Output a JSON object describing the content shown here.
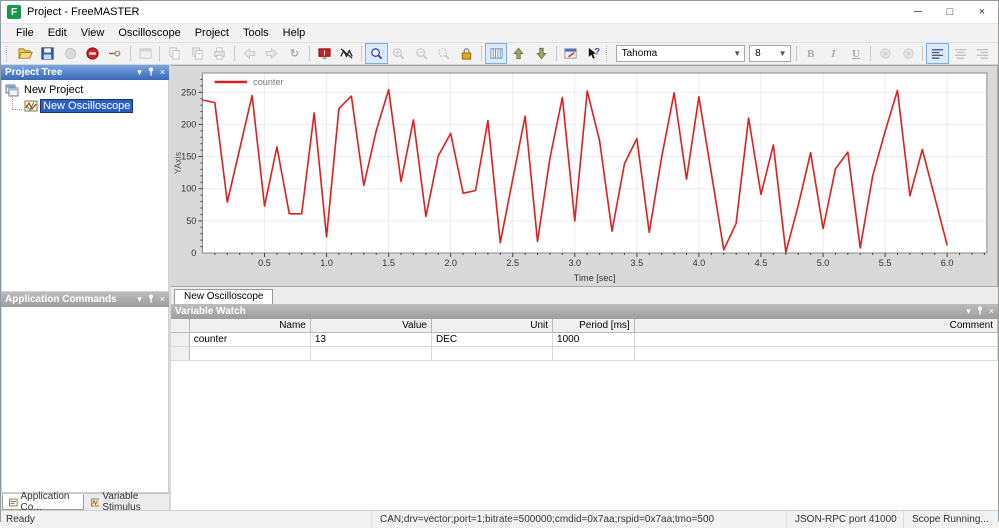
{
  "window": {
    "title": "Project - FreeMASTER",
    "minimize": "─",
    "maximize": "□",
    "close": "×",
    "logo": "F"
  },
  "menu": {
    "items": [
      "File",
      "Edit",
      "View",
      "Oscilloscope",
      "Project",
      "Tools",
      "Help"
    ]
  },
  "toolbar": {
    "font_name": "Tahoma",
    "font_size": "8",
    "bold": "B",
    "italic": "I",
    "underline": "U",
    "reload_glyph": "↻",
    "help_glyph": "?",
    "icons": [
      "open-project-icon",
      "save-project-icon",
      "start-communication-icon",
      "stop-communication-icon",
      "connect-plug-icon",
      "project-options-icon",
      "copy-icon",
      "paste-icon",
      "print-icon",
      "back-icon",
      "forward-icon",
      "reload-icon",
      "communication-error-icon",
      "stimulus-icon",
      "zoom-all-icon",
      "zoom-in-icon",
      "zoom-out-icon",
      "zoom-selection-icon",
      "lock-scope-icon",
      "grid-icon",
      "move-up-icon",
      "move-down-icon",
      "properties-icon",
      "context-help-icon",
      "bold-button",
      "italic-button",
      "underline-button",
      "text-color-icon",
      "highlight-color-icon",
      "align-left-icon",
      "align-center-icon",
      "align-right-icon"
    ]
  },
  "project_tree": {
    "title": "Project Tree",
    "items": [
      {
        "label": "New Project",
        "selected": false
      },
      {
        "label": "New Oscilloscope",
        "selected": true
      }
    ]
  },
  "application_commands": {
    "title": "Application Commands"
  },
  "bottom_tabs": [
    {
      "label": "Application Co...",
      "active": true
    },
    {
      "label": "Variable Stimulus",
      "active": false
    }
  ],
  "scope_tab": {
    "label": "New Oscilloscope"
  },
  "variable_watch": {
    "title": "Variable Watch",
    "columns": [
      "Name",
      "Value",
      "Unit",
      "Period [ms]",
      "Comment"
    ],
    "rows": [
      {
        "name": "counter",
        "value": "13",
        "unit": "DEC",
        "period": "1000",
        "comment": ""
      }
    ]
  },
  "status_bar": {
    "ready": "Ready",
    "connection": "CAN;drv=vector;port=1;bitrate=500000;cmdid=0x7aa;rspid=0x7aa;tmo=500",
    "rpc": "JSON-RPC port 41000",
    "scope": "Scope Running..."
  },
  "chart_data": {
    "type": "line",
    "title": "",
    "xlabel": "Time [sec]",
    "ylabel": "YAxis",
    "xlim": [
      0,
      6.32
    ],
    "ylim": [
      0,
      280
    ],
    "x_tick_step": 0.5,
    "x_minor": 0.1,
    "y_tick_step": 50,
    "y_minor": 10,
    "grid": true,
    "legend_position": "top-left",
    "series": [
      {
        "name": "counter",
        "color": "#e02020",
        "x": [
          0,
          0.1,
          0.2,
          0.3,
          0.4,
          0.5,
          0.6,
          0.7,
          0.8,
          0.9,
          1,
          1.1,
          1.2,
          1.3,
          1.4,
          1.5,
          1.6,
          1.7,
          1.8,
          1.9,
          2,
          2.1,
          2.2,
          2.3,
          2.4,
          2.5,
          2.6,
          2.7,
          2.8,
          2.9,
          3,
          3.1,
          3.2,
          3.3,
          3.4,
          3.5,
          3.6,
          3.7,
          3.8,
          3.9,
          4,
          4.1,
          4.2,
          4.3,
          4.4,
          4.5,
          4.6,
          4.7,
          4.8,
          4.9,
          5,
          5.1,
          5.2,
          5.3,
          5.4,
          5.5,
          5.6,
          5.7,
          5.8,
          5.9,
          6
        ],
        "y": [
          238,
          234,
          79,
          162,
          245,
          73,
          165,
          61,
          61,
          218,
          25,
          225,
          244,
          105,
          190,
          254,
          111,
          207,
          57,
          151,
          186,
          93,
          97,
          206,
          16,
          115,
          213,
          18,
          148,
          242,
          50,
          252,
          174,
          34,
          139,
          178,
          32,
          149,
          249,
          115,
          243,
          124,
          5,
          46,
          210,
          91,
          168,
          1,
          74,
          156,
          38,
          131,
          157,
          8,
          120,
          189,
          253,
          89,
          161,
          87,
          12
        ]
      }
    ]
  }
}
